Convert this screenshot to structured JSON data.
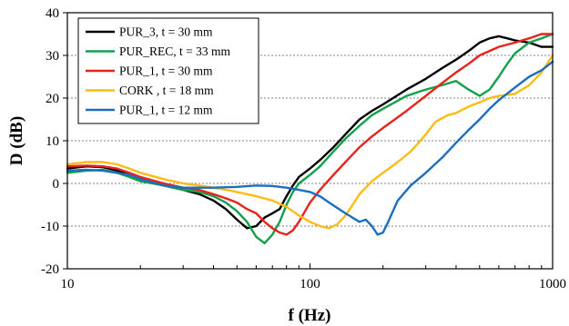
{
  "chart_data": {
    "type": "line",
    "xlabel": "f (Hz)",
    "ylabel": "D (dB)",
    "x_scale": "log",
    "xlim": [
      10,
      1000
    ],
    "ylim": [
      -20,
      40
    ],
    "x_ticks": [
      10,
      100,
      1000
    ],
    "x_tick_labels": [
      "10",
      "100",
      "1000"
    ],
    "y_ticks": [
      -20,
      -10,
      0,
      10,
      20,
      30,
      40
    ],
    "y_tick_labels": [
      "-20",
      "-10",
      "0",
      "10",
      "20",
      "30",
      "40"
    ],
    "grid": "horizontal-dashed",
    "legend": "top-left",
    "series": [
      {
        "name": "PUR_3, t = 30 mm",
        "color": "#000000",
        "points": [
          [
            10,
            3.5
          ],
          [
            12,
            4
          ],
          [
            14,
            3.8
          ],
          [
            16,
            3
          ],
          [
            18,
            2
          ],
          [
            20,
            1
          ],
          [
            25,
            -0.5
          ],
          [
            30,
            -1.5
          ],
          [
            35,
            -2.5
          ],
          [
            40,
            -4
          ],
          [
            45,
            -6
          ],
          [
            50,
            -8.5
          ],
          [
            55,
            -10.5
          ],
          [
            60,
            -10
          ],
          [
            65,
            -8
          ],
          [
            70,
            -7
          ],
          [
            75,
            -6
          ],
          [
            80,
            -3
          ],
          [
            85,
            -0.5
          ],
          [
            90,
            1.5
          ],
          [
            100,
            3.5
          ],
          [
            110,
            5.5
          ],
          [
            125,
            8.5
          ],
          [
            140,
            11.5
          ],
          [
            160,
            15
          ],
          [
            180,
            17
          ],
          [
            200,
            18.5
          ],
          [
            250,
            22
          ],
          [
            300,
            24.5
          ],
          [
            350,
            27
          ],
          [
            400,
            29
          ],
          [
            450,
            31
          ],
          [
            500,
            33
          ],
          [
            550,
            34
          ],
          [
            600,
            34.5
          ],
          [
            650,
            34
          ],
          [
            700,
            33.5
          ],
          [
            800,
            33
          ],
          [
            900,
            32
          ],
          [
            1000,
            32
          ]
        ]
      },
      {
        "name": "PUR_REC, t = 33 mm",
        "color": "#13a04a",
        "points": [
          [
            10,
            2.5
          ],
          [
            12,
            3
          ],
          [
            14,
            3.2
          ],
          [
            16,
            2.5
          ],
          [
            18,
            1.5
          ],
          [
            20,
            0.5
          ],
          [
            25,
            -0.5
          ],
          [
            30,
            -1.5
          ],
          [
            35,
            -2
          ],
          [
            40,
            -3
          ],
          [
            45,
            -4.5
          ],
          [
            50,
            -6.5
          ],
          [
            55,
            -9
          ],
          [
            60,
            -12.5
          ],
          [
            65,
            -14
          ],
          [
            70,
            -12
          ],
          [
            75,
            -9
          ],
          [
            80,
            -5
          ],
          [
            85,
            -2
          ],
          [
            90,
            0
          ],
          [
            100,
            2
          ],
          [
            110,
            4
          ],
          [
            125,
            7.5
          ],
          [
            140,
            10.5
          ],
          [
            160,
            13.5
          ],
          [
            180,
            16
          ],
          [
            200,
            17.5
          ],
          [
            250,
            20.5
          ],
          [
            300,
            22
          ],
          [
            350,
            23
          ],
          [
            400,
            24
          ],
          [
            450,
            22
          ],
          [
            500,
            20.5
          ],
          [
            550,
            22
          ],
          [
            600,
            25
          ],
          [
            650,
            28
          ],
          [
            700,
            30.5
          ],
          [
            800,
            33
          ],
          [
            900,
            34
          ],
          [
            1000,
            35
          ]
        ]
      },
      {
        "name": "PUR_1, t = 30 mm",
        "color": "#e8231c",
        "points": [
          [
            10,
            4
          ],
          [
            12,
            4.2
          ],
          [
            14,
            4
          ],
          [
            16,
            3.5
          ],
          [
            18,
            2.5
          ],
          [
            20,
            1.5
          ],
          [
            25,
            0
          ],
          [
            30,
            -1
          ],
          [
            35,
            -1.5
          ],
          [
            40,
            -2.5
          ],
          [
            45,
            -3.5
          ],
          [
            50,
            -4.5
          ],
          [
            55,
            -6
          ],
          [
            60,
            -7
          ],
          [
            65,
            -9
          ],
          [
            70,
            -10.5
          ],
          [
            75,
            -11.5
          ],
          [
            80,
            -12
          ],
          [
            85,
            -11
          ],
          [
            90,
            -9
          ],
          [
            100,
            -4.5
          ],
          [
            110,
            -1.5
          ],
          [
            125,
            2
          ],
          [
            140,
            5
          ],
          [
            160,
            8.5
          ],
          [
            180,
            11
          ],
          [
            200,
            13
          ],
          [
            250,
            17
          ],
          [
            300,
            20.5
          ],
          [
            350,
            23.5
          ],
          [
            400,
            26
          ],
          [
            450,
            28
          ],
          [
            500,
            30
          ],
          [
            600,
            32
          ],
          [
            700,
            33
          ],
          [
            800,
            34
          ],
          [
            900,
            35
          ],
          [
            1000,
            35
          ]
        ]
      },
      {
        "name": "CORK , t = 18 mm",
        "color": "#fdbb14",
        "points": [
          [
            10,
            4.5
          ],
          [
            12,
            5
          ],
          [
            14,
            5
          ],
          [
            16,
            4.5
          ],
          [
            18,
            3.5
          ],
          [
            20,
            2.5
          ],
          [
            25,
            1
          ],
          [
            30,
            0
          ],
          [
            35,
            -0.5
          ],
          [
            40,
            -1
          ],
          [
            45,
            -1.5
          ],
          [
            50,
            -2
          ],
          [
            60,
            -3
          ],
          [
            70,
            -4
          ],
          [
            80,
            -5.5
          ],
          [
            90,
            -7.5
          ],
          [
            100,
            -9
          ],
          [
            110,
            -10
          ],
          [
            120,
            -10.5
          ],
          [
            130,
            -9.5
          ],
          [
            140,
            -7.5
          ],
          [
            150,
            -5
          ],
          [
            160,
            -2.5
          ],
          [
            180,
            0.5
          ],
          [
            200,
            2.5
          ],
          [
            230,
            5
          ],
          [
            260,
            7.5
          ],
          [
            280,
            9.5
          ],
          [
            300,
            11.5
          ],
          [
            330,
            14.5
          ],
          [
            370,
            16
          ],
          [
            400,
            16.5
          ],
          [
            450,
            18
          ],
          [
            500,
            19
          ],
          [
            550,
            20
          ],
          [
            600,
            20.5
          ],
          [
            700,
            21
          ],
          [
            800,
            23
          ],
          [
            900,
            26
          ],
          [
            1000,
            30
          ]
        ]
      },
      {
        "name": "PUR_1, t = 12 mm",
        "color": "#1b6fbd",
        "points": [
          [
            10,
            3
          ],
          [
            12,
            3.2
          ],
          [
            14,
            3
          ],
          [
            16,
            2.5
          ],
          [
            18,
            2
          ],
          [
            20,
            1
          ],
          [
            25,
            -0.5
          ],
          [
            30,
            -1
          ],
          [
            35,
            -1
          ],
          [
            40,
            -1
          ],
          [
            50,
            -0.8
          ],
          [
            60,
            -0.5
          ],
          [
            70,
            -0.6
          ],
          [
            80,
            -1
          ],
          [
            90,
            -1.5
          ],
          [
            100,
            -2
          ],
          [
            110,
            -3
          ],
          [
            120,
            -4.5
          ],
          [
            140,
            -7
          ],
          [
            160,
            -9
          ],
          [
            170,
            -8.5
          ],
          [
            180,
            -10
          ],
          [
            190,
            -12
          ],
          [
            200,
            -11.5
          ],
          [
            210,
            -9
          ],
          [
            230,
            -4
          ],
          [
            260,
            -0.5
          ],
          [
            300,
            2.5
          ],
          [
            350,
            6
          ],
          [
            400,
            9.5
          ],
          [
            450,
            12.5
          ],
          [
            500,
            15
          ],
          [
            550,
            17.5
          ],
          [
            600,
            19.5
          ],
          [
            700,
            22.5
          ],
          [
            800,
            25
          ],
          [
            900,
            26.5
          ],
          [
            1000,
            28.5
          ]
        ]
      }
    ]
  }
}
